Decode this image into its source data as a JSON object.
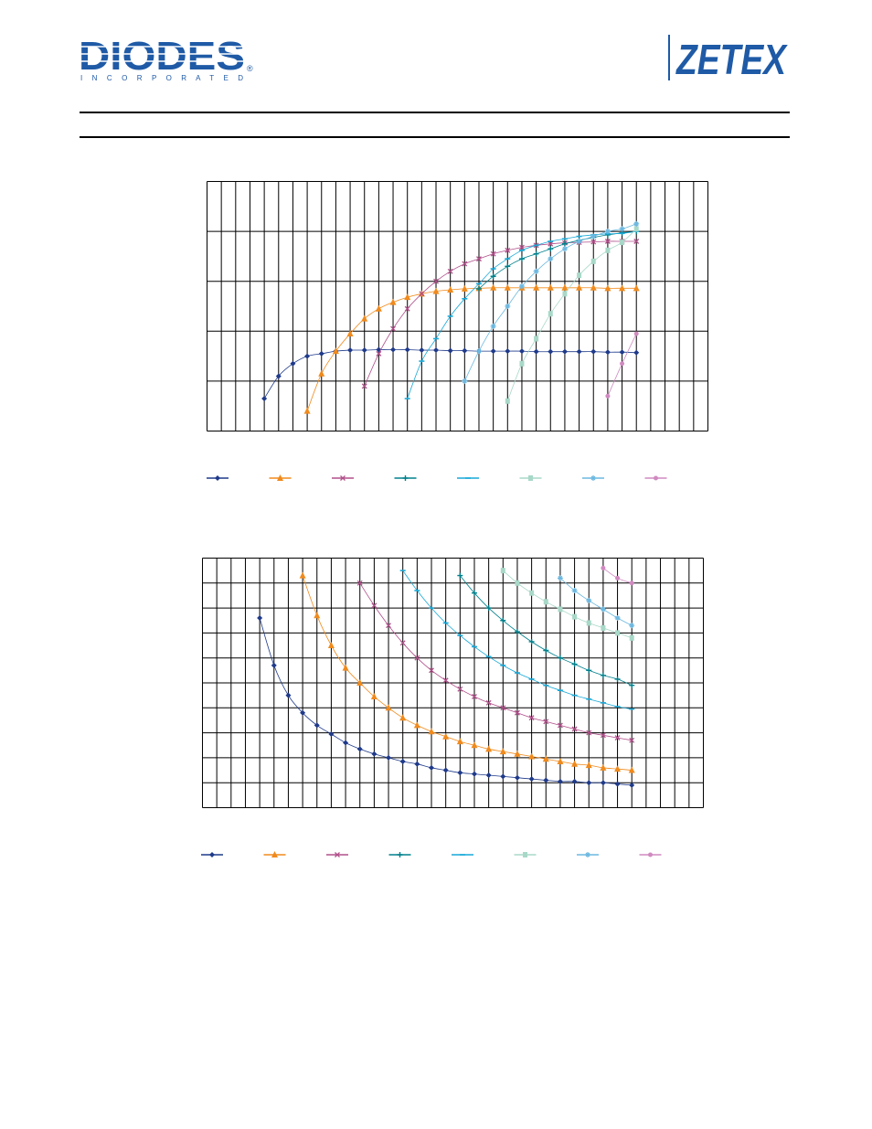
{
  "header": {
    "left_logo": {
      "wordmark": "DIODES",
      "subline": "INCORPORATED",
      "registered": "®",
      "color": "#1f5aa6"
    },
    "right_logo": {
      "wordmark": "ZETEX",
      "color": "#1f5aa6"
    }
  },
  "colors": {
    "series": [
      "#1f3a8a",
      "#f08a1c",
      "#b0508a",
      "#00808c",
      "#19a9d9",
      "#a8d8c8",
      "#6cb8e0",
      "#d08ac0"
    ],
    "grid": "#000000",
    "line": "#000000"
  },
  "legend_markers": [
    "diamond",
    "triangle",
    "x",
    "plus",
    "dash",
    "square",
    "star",
    "circle"
  ],
  "chart_data": [
    {
      "type": "line",
      "title": "",
      "xlabel": "",
      "ylabel": "",
      "xlim": [
        0,
        35
      ],
      "ylim": [
        0,
        5
      ],
      "grid": true,
      "legend": "bottom",
      "series": [
        {
          "marker": "diamond",
          "points": [
            [
              4,
              0.65
            ],
            [
              5,
              1.1
            ],
            [
              6,
              1.35
            ],
            [
              7,
              1.5
            ],
            [
              8,
              1.55
            ],
            [
              9,
              1.6
            ],
            [
              10,
              1.62
            ],
            [
              11,
              1.62
            ],
            [
              12,
              1.63
            ],
            [
              13,
              1.63
            ],
            [
              14,
              1.63
            ],
            [
              15,
              1.62
            ],
            [
              16,
              1.62
            ],
            [
              17,
              1.61
            ],
            [
              18,
              1.61
            ],
            [
              19,
              1.6
            ],
            [
              20,
              1.6
            ],
            [
              21,
              1.6
            ],
            [
              22,
              1.6
            ],
            [
              23,
              1.59
            ],
            [
              24,
              1.59
            ],
            [
              25,
              1.59
            ],
            [
              26,
              1.59
            ],
            [
              27,
              1.59
            ],
            [
              28,
              1.58
            ],
            [
              29,
              1.58
            ],
            [
              30,
              1.57
            ]
          ]
        },
        {
          "marker": "triangle",
          "points": [
            [
              7,
              0.4
            ],
            [
              8,
              1.15
            ],
            [
              9,
              1.6
            ],
            [
              10,
              1.95
            ],
            [
              11,
              2.25
            ],
            [
              12,
              2.45
            ],
            [
              13,
              2.58
            ],
            [
              14,
              2.68
            ],
            [
              15,
              2.75
            ],
            [
              16,
              2.8
            ],
            [
              17,
              2.83
            ],
            [
              18,
              2.85
            ],
            [
              19,
              2.86
            ],
            [
              20,
              2.87
            ],
            [
              21,
              2.87
            ],
            [
              22,
              2.87
            ],
            [
              23,
              2.87
            ],
            [
              24,
              2.87
            ],
            [
              25,
              2.87
            ],
            [
              26,
              2.87
            ],
            [
              27,
              2.87
            ],
            [
              28,
              2.86
            ],
            [
              29,
              2.86
            ],
            [
              30,
              2.86
            ]
          ]
        },
        {
          "marker": "x",
          "points": [
            [
              11,
              0.9
            ],
            [
              12,
              1.55
            ],
            [
              13,
              2.05
            ],
            [
              14,
              2.45
            ],
            [
              15,
              2.75
            ],
            [
              16,
              3.0
            ],
            [
              17,
              3.2
            ],
            [
              18,
              3.35
            ],
            [
              19,
              3.45
            ],
            [
              20,
              3.55
            ],
            [
              21,
              3.62
            ],
            [
              22,
              3.68
            ],
            [
              23,
              3.72
            ],
            [
              24,
              3.75
            ],
            [
              25,
              3.77
            ],
            [
              26,
              3.78
            ],
            [
              27,
              3.79
            ],
            [
              28,
              3.8
            ],
            [
              29,
              3.8
            ],
            [
              30,
              3.8
            ]
          ]
        },
        {
          "marker": "plus",
          "points": [
            [
              19,
              2.85
            ],
            [
              20,
              3.1
            ],
            [
              21,
              3.3
            ],
            [
              22,
              3.45
            ],
            [
              23,
              3.55
            ],
            [
              24,
              3.65
            ],
            [
              25,
              3.75
            ],
            [
              26,
              3.82
            ],
            [
              27,
              3.88
            ],
            [
              28,
              3.93
            ],
            [
              29,
              3.97
            ],
            [
              30,
              4.0
            ]
          ]
        },
        {
          "marker": "dash",
          "points": [
            [
              14,
              0.65
            ],
            [
              15,
              1.4
            ],
            [
              16,
              1.85
            ],
            [
              17,
              2.3
            ],
            [
              18,
              2.65
            ],
            [
              19,
              2.95
            ],
            [
              20,
              3.25
            ],
            [
              21,
              3.45
            ],
            [
              22,
              3.62
            ],
            [
              23,
              3.72
            ],
            [
              24,
              3.8
            ],
            [
              25,
              3.85
            ],
            [
              26,
              3.9
            ],
            [
              27,
              3.93
            ],
            [
              28,
              3.95
            ],
            [
              29,
              3.96
            ],
            [
              30,
              4.0
            ]
          ]
        },
        {
          "marker": "square",
          "points": [
            [
              21,
              0.6
            ],
            [
              22,
              1.35
            ],
            [
              23,
              1.85
            ],
            [
              24,
              2.35
            ],
            [
              25,
              2.75
            ],
            [
              26,
              3.12
            ],
            [
              27,
              3.4
            ],
            [
              28,
              3.62
            ],
            [
              29,
              3.78
            ],
            [
              30,
              4.05
            ]
          ]
        },
        {
          "marker": "star",
          "points": [
            [
              18,
              1.0
            ],
            [
              19,
              1.6
            ],
            [
              20,
              2.1
            ],
            [
              21,
              2.5
            ],
            [
              22,
              2.9
            ],
            [
              23,
              3.2
            ],
            [
              24,
              3.45
            ],
            [
              25,
              3.65
            ],
            [
              26,
              3.8
            ],
            [
              27,
              3.9
            ],
            [
              28,
              4.0
            ],
            [
              29,
              4.05
            ],
            [
              30,
              4.15
            ]
          ]
        },
        {
          "marker": "circle",
          "points": [
            [
              28,
              0.7
            ],
            [
              29,
              1.35
            ],
            [
              30,
              1.95
            ]
          ]
        }
      ]
    },
    {
      "type": "line",
      "title": "",
      "xlabel": "",
      "ylabel": "",
      "xlim": [
        0,
        35
      ],
      "ylim": [
        0,
        10
      ],
      "grid": true,
      "legend": "bottom",
      "series": [
        {
          "marker": "diamond",
          "points": [
            [
              4,
              7.6
            ],
            [
              5,
              5.7
            ],
            [
              6,
              4.5
            ],
            [
              7,
              3.8
            ],
            [
              8,
              3.3
            ],
            [
              9,
              2.95
            ],
            [
              10,
              2.6
            ],
            [
              11,
              2.35
            ],
            [
              12,
              2.15
            ],
            [
              13,
              2.0
            ],
            [
              14,
              1.85
            ],
            [
              15,
              1.75
            ],
            [
              16,
              1.6
            ],
            [
              17,
              1.5
            ],
            [
              18,
              1.4
            ],
            [
              19,
              1.35
            ],
            [
              20,
              1.3
            ],
            [
              21,
              1.25
            ],
            [
              22,
              1.2
            ],
            [
              23,
              1.15
            ],
            [
              24,
              1.1
            ],
            [
              25,
              1.05
            ],
            [
              26,
              1.05
            ],
            [
              27,
              1.0
            ],
            [
              28,
              1.0
            ],
            [
              29,
              0.95
            ],
            [
              30,
              0.9
            ]
          ]
        },
        {
          "marker": "triangle",
          "points": [
            [
              7,
              9.3
            ],
            [
              8,
              7.7
            ],
            [
              9,
              6.5
            ],
            [
              10,
              5.6
            ],
            [
              11,
              5.0
            ],
            [
              12,
              4.45
            ],
            [
              13,
              4.0
            ],
            [
              14,
              3.6
            ],
            [
              15,
              3.3
            ],
            [
              16,
              3.05
            ],
            [
              17,
              2.85
            ],
            [
              18,
              2.65
            ],
            [
              19,
              2.5
            ],
            [
              20,
              2.35
            ],
            [
              21,
              2.25
            ],
            [
              22,
              2.15
            ],
            [
              23,
              2.05
            ],
            [
              24,
              1.95
            ],
            [
              25,
              1.85
            ],
            [
              26,
              1.75
            ],
            [
              27,
              1.7
            ],
            [
              28,
              1.6
            ],
            [
              29,
              1.55
            ],
            [
              30,
              1.5
            ]
          ]
        },
        {
          "marker": "x",
          "points": [
            [
              11,
              9.0
            ],
            [
              12,
              8.1
            ],
            [
              13,
              7.3
            ],
            [
              14,
              6.6
            ],
            [
              15,
              6.0
            ],
            [
              16,
              5.5
            ],
            [
              17,
              5.1
            ],
            [
              18,
              4.75
            ],
            [
              19,
              4.45
            ],
            [
              20,
              4.2
            ],
            [
              21,
              4.0
            ],
            [
              22,
              3.8
            ],
            [
              23,
              3.6
            ],
            [
              24,
              3.45
            ],
            [
              25,
              3.3
            ],
            [
              26,
              3.15
            ],
            [
              27,
              3.0
            ],
            [
              28,
              2.9
            ],
            [
              29,
              2.8
            ],
            [
              30,
              2.7
            ]
          ]
        },
        {
          "marker": "plus",
          "points": [
            [
              18,
              9.3
            ],
            [
              19,
              8.6
            ],
            [
              20,
              8.0
            ],
            [
              21,
              7.5
            ],
            [
              22,
              7.05
            ],
            [
              23,
              6.65
            ],
            [
              24,
              6.3
            ],
            [
              25,
              6.0
            ],
            [
              26,
              5.75
            ],
            [
              27,
              5.5
            ],
            [
              28,
              5.3
            ],
            [
              29,
              5.15
            ],
            [
              30,
              4.9
            ]
          ]
        },
        {
          "marker": "dash",
          "points": [
            [
              14,
              9.5
            ],
            [
              15,
              8.7
            ],
            [
              16,
              8.0
            ],
            [
              17,
              7.4
            ],
            [
              18,
              6.9
            ],
            [
              19,
              6.45
            ],
            [
              20,
              6.05
            ],
            [
              21,
              5.7
            ],
            [
              22,
              5.4
            ],
            [
              23,
              5.15
            ],
            [
              24,
              4.9
            ],
            [
              25,
              4.7
            ],
            [
              26,
              4.5
            ],
            [
              27,
              4.35
            ],
            [
              28,
              4.2
            ],
            [
              29,
              4.05
            ],
            [
              30,
              3.95
            ]
          ]
        },
        {
          "marker": "square",
          "points": [
            [
              21,
              9.5
            ],
            [
              22,
              9.0
            ],
            [
              23,
              8.6
            ],
            [
              24,
              8.25
            ],
            [
              25,
              7.95
            ],
            [
              26,
              7.65
            ],
            [
              27,
              7.4
            ],
            [
              28,
              7.2
            ],
            [
              29,
              7.0
            ],
            [
              30,
              6.8
            ]
          ]
        },
        {
          "marker": "star",
          "points": [
            [
              25,
              9.2
            ],
            [
              26,
              8.7
            ],
            [
              27,
              8.3
            ],
            [
              28,
              7.95
            ],
            [
              29,
              7.6
            ],
            [
              30,
              7.3
            ]
          ]
        },
        {
          "marker": "circle",
          "points": [
            [
              28,
              9.6
            ],
            [
              29,
              9.2
            ],
            [
              30,
              9.0
            ]
          ]
        }
      ]
    }
  ]
}
